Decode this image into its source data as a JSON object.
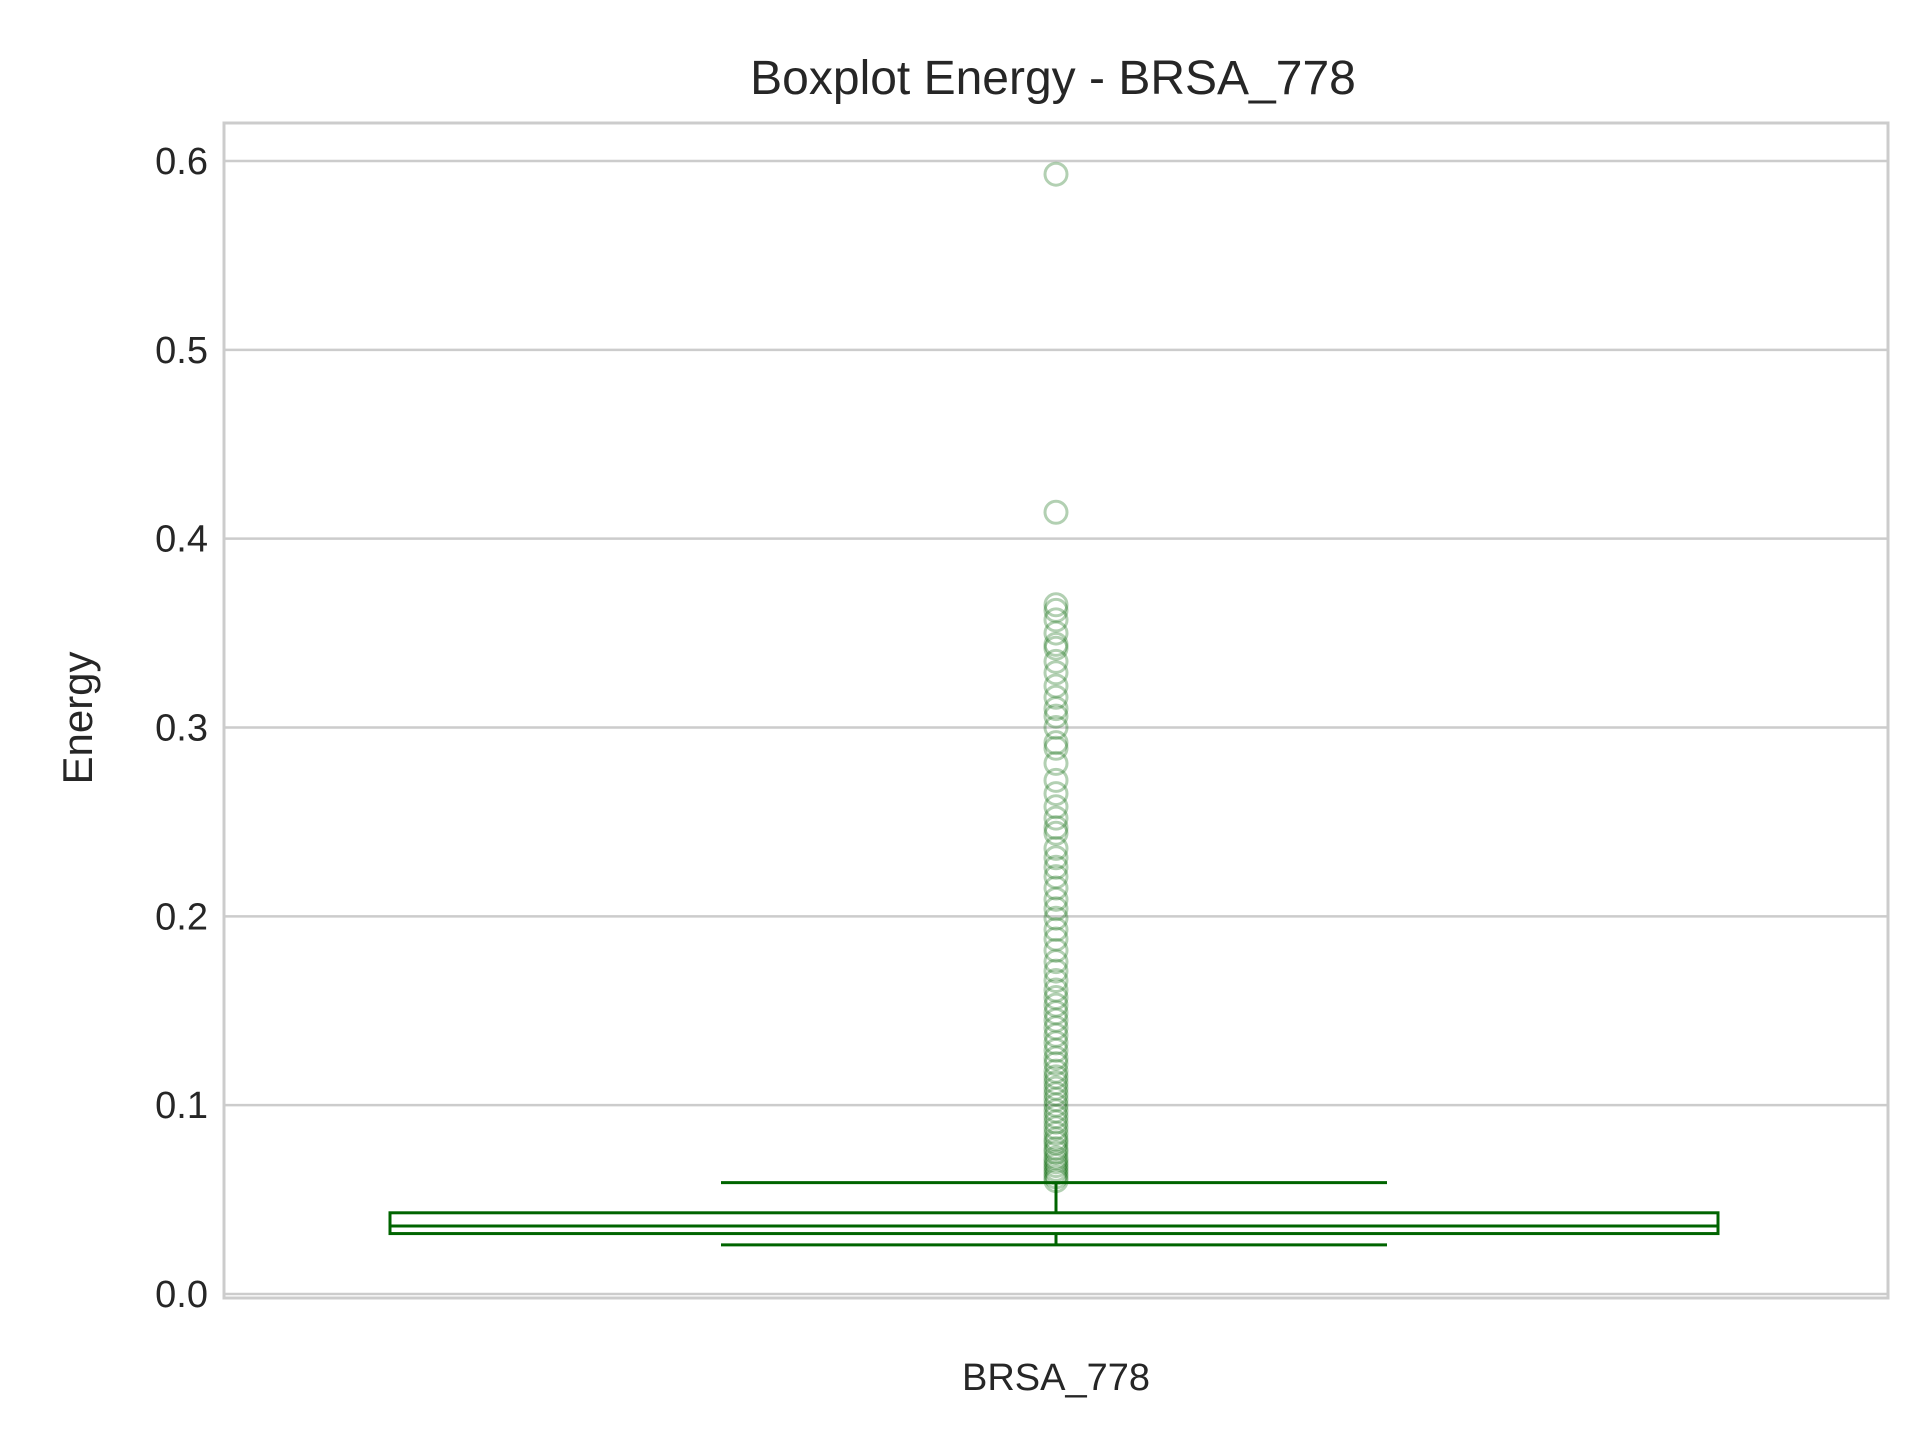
{
  "chart_data": {
    "type": "box",
    "title": "Boxplot Energy - BRSA_778",
    "xlabel": "",
    "ylabel": "Energy",
    "categories": [
      "BRSA_778"
    ],
    "ylim": [
      0.0,
      0.62
    ],
    "yticks": [
      0.0,
      0.1,
      0.2,
      0.3,
      0.4,
      0.5,
      0.6
    ],
    "ytick_labels": [
      "0.0",
      "0.1",
      "0.2",
      "0.3",
      "0.4",
      "0.5",
      "0.6"
    ],
    "grid": true,
    "color": "#006400",
    "box": {
      "category": "BRSA_778",
      "whisker_low": 0.026,
      "q1": 0.032,
      "median": 0.036,
      "q3": 0.043,
      "whisker_high": 0.059
    },
    "outliers": [
      0.593,
      0.414,
      0.365,
      0.362,
      0.357,
      0.35,
      0.344,
      0.342,
      0.335,
      0.329,
      0.322,
      0.316,
      0.31,
      0.306,
      0.3,
      0.292,
      0.289,
      0.281,
      0.272,
      0.265,
      0.258,
      0.252,
      0.247,
      0.244,
      0.236,
      0.231,
      0.226,
      0.221,
      0.215,
      0.209,
      0.204,
      0.199,
      0.193,
      0.188,
      0.182,
      0.176,
      0.171,
      0.166,
      0.161,
      0.157,
      0.153,
      0.149,
      0.145,
      0.141,
      0.137,
      0.133,
      0.129,
      0.125,
      0.122,
      0.118,
      0.115,
      0.112,
      0.109,
      0.106,
      0.103,
      0.1,
      0.097,
      0.094,
      0.091,
      0.088,
      0.085,
      0.082,
      0.08,
      0.077,
      0.075,
      0.072,
      0.07,
      0.068,
      0.066,
      0.064,
      0.062,
      0.06
    ]
  }
}
